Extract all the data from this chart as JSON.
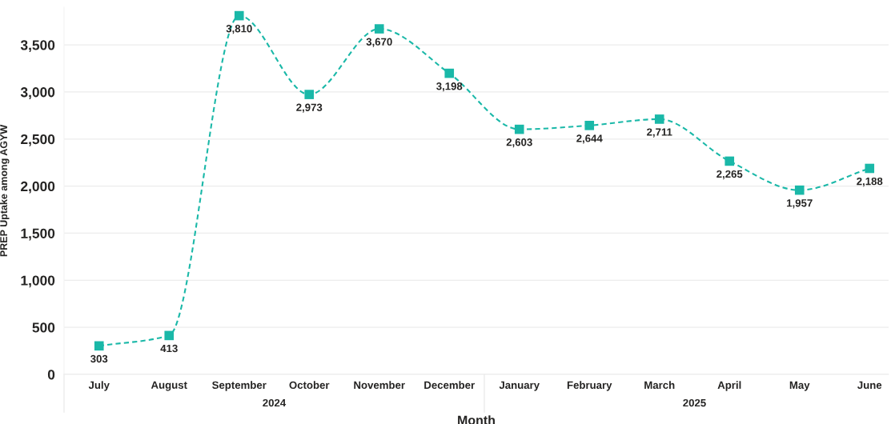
{
  "chart_data": {
    "type": "line",
    "xlabel": "Month",
    "ylabel": "PREP Uptake among AGYW",
    "categories": [
      "July",
      "August",
      "September",
      "October",
      "November",
      "December",
      "January",
      "February",
      "March",
      "April",
      "May",
      "June"
    ],
    "series": [
      {
        "color": "#1ab8a8",
        "values": [
          303,
          413,
          3810,
          2973,
          3670,
          3198,
          2603,
          2644,
          2711,
          2265,
          1957,
          2188
        ],
        "value_labels": [
          "303",
          "413",
          "3,810",
          "2,973",
          "3,670",
          "3,198",
          "2,603",
          "2,644",
          "2,711",
          "2,265",
          "1,957",
          "2,188"
        ]
      }
    ],
    "ylim": [
      0,
      3900
    ],
    "yticks": [
      0,
      500,
      {
        "value": 1000,
        "label": "1,000"
      },
      {
        "value": 1500,
        "label": "1,500"
      },
      {
        "value": 2000,
        "label": "2,000"
      },
      {
        "value": 2500,
        "label": "2,500"
      },
      {
        "value": 3000,
        "label": "3,000"
      },
      {
        "value": 3500,
        "label": "3,500"
      }
    ],
    "grid": "y",
    "marker": "square",
    "line_style": "dashed",
    "annotations": [
      "2024",
      "2025"
    ]
  }
}
